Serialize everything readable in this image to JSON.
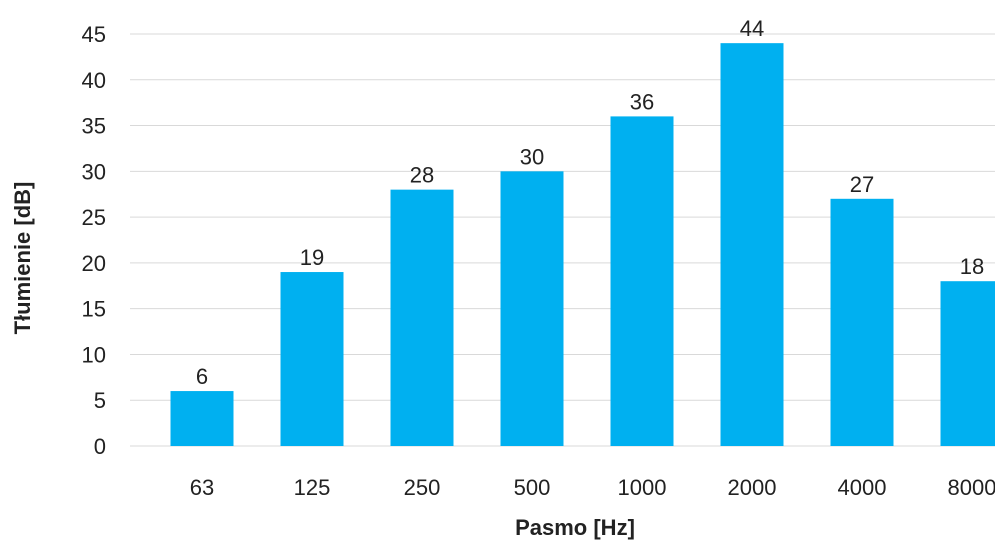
{
  "chart_data": {
    "type": "bar",
    "categories": [
      "63",
      "125",
      "250",
      "500",
      "1000",
      "2000",
      "4000",
      "8000"
    ],
    "values": [
      6,
      19,
      28,
      30,
      36,
      44,
      27,
      18
    ],
    "title": "",
    "xlabel": "Pasmo [Hz]",
    "ylabel": "Tłumienie [dB]",
    "ylim": [
      0,
      45
    ],
    "yticks": [
      0,
      5,
      10,
      15,
      20,
      25,
      30,
      35,
      40,
      45
    ],
    "grid": true,
    "legend": "none",
    "data_labels": true,
    "bar_color": "#00b0f0"
  }
}
